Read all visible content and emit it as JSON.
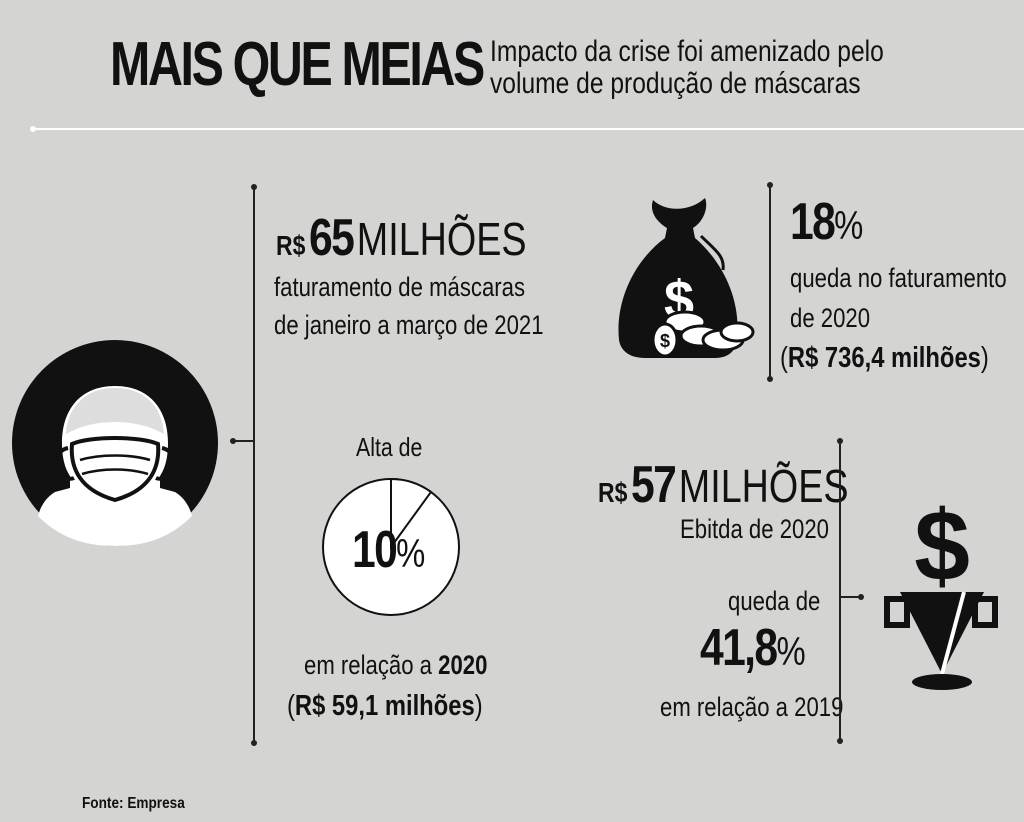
{
  "header": {
    "title": "MAIS QUE MEIAS",
    "subtitle_line1": "Impacto da crise foi amenizado pelo",
    "subtitle_line2": "volume de produção de máscaras"
  },
  "revenue_block": {
    "currency": "R$",
    "amount": "65",
    "unit": "MILHÕES",
    "desc_line1": "faturamento de máscaras",
    "desc_line2": "de janeiro a março de 2021"
  },
  "growth_block": {
    "label": "Alta de",
    "value": "10",
    "percent": "%",
    "value_fraction": 0.1,
    "compare_prefix": "em relação a ",
    "compare_year": "2020",
    "paren_open": "(",
    "compare_amount": "R$ 59,1 milhões",
    "paren_close": ")"
  },
  "drop_block": {
    "value": "18",
    "percent": "%",
    "desc_line1": "queda no faturamento",
    "desc_line2": "de 2020",
    "paren_open": "(",
    "amount": "R$ 736,4 milhões",
    "paren_close": ")"
  },
  "ebitda_block": {
    "currency": "R$",
    "amount": "57",
    "unit": "MILHÕES",
    "desc": "Ebitda de 2020",
    "drop_label": "queda de",
    "drop_value": "41,8",
    "percent": "%",
    "compare": "em relação a 2019"
  },
  "footer": {
    "source": "Fonte: Empresa"
  },
  "icons": [
    "masked-face-icon",
    "money-bag-icon",
    "coins-icon",
    "dollar-funnel-icon"
  ],
  "colors": {
    "background": "#d4d4d2",
    "ink": "#111111",
    "line": "#ffffff"
  }
}
